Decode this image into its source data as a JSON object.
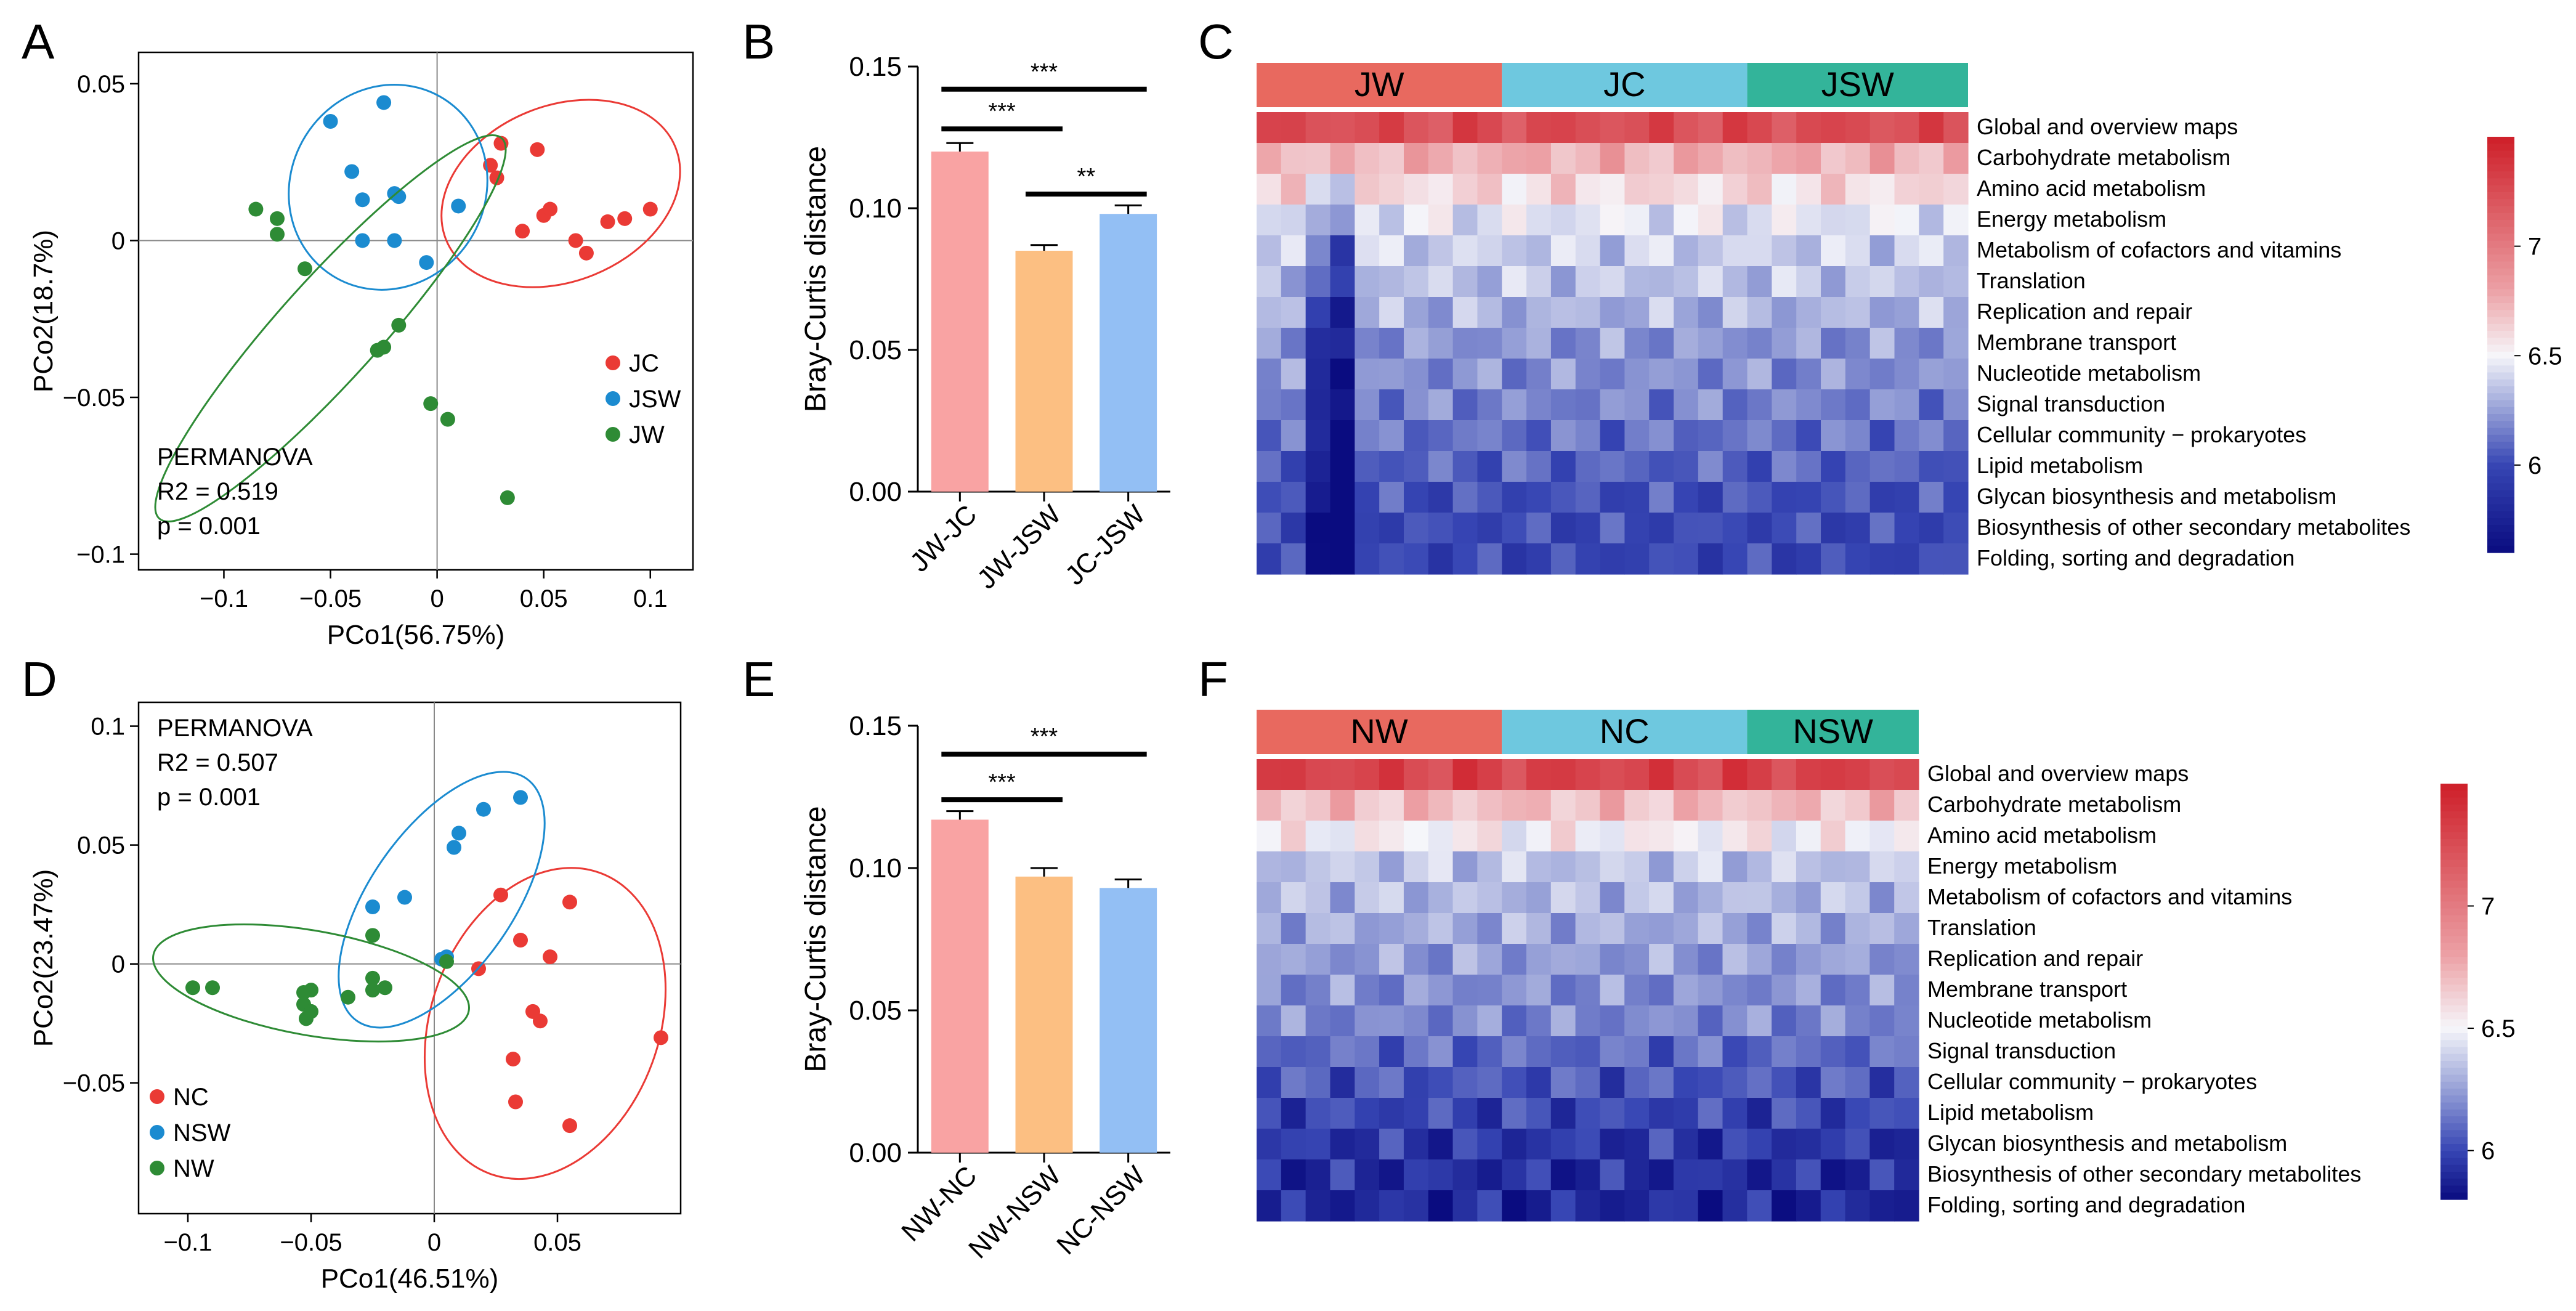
{
  "colors": {
    "JC": "#ea3a35",
    "JSW": "#1b8bd0",
    "JW": "#2e8b35",
    "NC": "#ea3a35",
    "NSW": "#1b8bd0",
    "NW": "#2e8b35",
    "bar_pink": "#f9a3a3",
    "bar_orange": "#fcbf82",
    "bar_blue": "#93bff4",
    "group_W": "#e8695f",
    "group_C": "#6ec8df",
    "group_SW": "#33b49a"
  },
  "chart_data": [
    {
      "panel": "A",
      "type": "scatter",
      "xlabel": "PCo1(56.75%)",
      "ylabel": "PCo2(18.7%)",
      "xlim": [
        -0.14,
        0.12
      ],
      "ylim": [
        -0.105,
        0.06
      ],
      "xticks": [
        -0.1,
        -0.05,
        0,
        0.05,
        0.1
      ],
      "xtick_labels": [
        "−0.1",
        "−0.05",
        "0",
        "0.05",
        "0.1"
      ],
      "yticks": [
        -0.1,
        -0.05,
        0,
        0.05
      ],
      "ytick_labels": [
        "−0.1",
        "−0.05",
        "0",
        "0.05"
      ],
      "annotation": [
        "PERMANOVA",
        "R2 = 0.519",
        "p = 0.001"
      ],
      "legend_position": "right",
      "series": [
        {
          "name": "JC",
          "color_key": "JC",
          "points": [
            [
              0.025,
              0.024
            ],
            [
              0.028,
              0.02
            ],
            [
              0.03,
              0.031
            ],
            [
              0.047,
              0.029
            ],
            [
              0.05,
              0.008
            ],
            [
              0.053,
              0.01
            ],
            [
              0.04,
              0.003
            ],
            [
              0.065,
              0.0
            ],
            [
              0.08,
              0.006
            ],
            [
              0.088,
              0.007
            ],
            [
              0.07,
              -0.004
            ],
            [
              0.1,
              0.01
            ]
          ],
          "ellipse": {
            "cx": 0.058,
            "cy": 0.015,
            "rx": 0.058,
            "ry": 0.028,
            "angle_deg": -22
          }
        },
        {
          "name": "JSW",
          "color_key": "JSW",
          "points": [
            [
              -0.05,
              0.038
            ],
            [
              -0.025,
              0.044
            ],
            [
              -0.04,
              0.022
            ],
            [
              -0.035,
              0.013
            ],
            [
              -0.018,
              0.014
            ],
            [
              -0.02,
              0.015
            ],
            [
              -0.035,
              0.0
            ],
            [
              -0.02,
              0.0
            ],
            [
              0.01,
              0.011
            ],
            [
              -0.005,
              -0.007
            ]
          ],
          "ellipse": {
            "cx": -0.023,
            "cy": 0.017,
            "rx": 0.049,
            "ry": 0.031,
            "angle_deg": -58
          }
        },
        {
          "name": "JW",
          "color_key": "JW",
          "points": [
            [
              -0.085,
              0.01
            ],
            [
              -0.075,
              0.007
            ],
            [
              -0.075,
              0.002
            ],
            [
              -0.062,
              -0.009
            ],
            [
              -0.028,
              -0.035
            ],
            [
              -0.025,
              -0.034
            ],
            [
              -0.018,
              -0.027
            ],
            [
              -0.003,
              -0.052
            ],
            [
              0.005,
              -0.057
            ],
            [
              0.033,
              -0.082
            ]
          ],
          "ellipse": {
            "cx": -0.05,
            "cy": -0.028,
            "rx": 0.12,
            "ry": 0.016,
            "angle_deg": -48
          }
        }
      ],
      "legend": [
        "JC",
        "JSW",
        "JW"
      ]
    },
    {
      "panel": "B",
      "type": "bar",
      "categories": [
        "JW-JC",
        "JW-JSW",
        "JC-JSW"
      ],
      "values": [
        0.12,
        0.085,
        0.098
      ],
      "errors": [
        0.003,
        0.002,
        0.003
      ],
      "ylabel": "Bray-Curtis distance",
      "ylim": [
        0,
        0.15
      ],
      "yticks": [
        0,
        0.05,
        0.1,
        0.15
      ],
      "ytick_labels": [
        "0.00",
        "0.05",
        "0.10",
        "0.15"
      ],
      "significance": [
        {
          "from": 0,
          "to": 2,
          "label": "***",
          "y": 0.142
        },
        {
          "from": 0,
          "to": 1,
          "label": "***",
          "y": 0.128
        },
        {
          "from": 1,
          "to": 2,
          "label": "**",
          "y": 0.105
        }
      ]
    },
    {
      "panel": "C",
      "type": "heatmap",
      "groups": [
        {
          "label": "JW",
          "columns": 10,
          "color_key": "group_W"
        },
        {
          "label": "JC",
          "columns": 10,
          "color_key": "group_C"
        },
        {
          "label": "JSW",
          "columns": 9,
          "color_key": "group_SW"
        }
      ],
      "rows": [
        "Global and overview maps",
        "Carbohydrate metabolism",
        "Amino acid metabolism",
        "Energy metabolism",
        "Metabolism of cofactors and vitamins",
        "Translation",
        "Replication and repair",
        "Membrane transport",
        "Nucleotide metabolism",
        "Signal transduction",
        "Cellular community − prokaryotes",
        "Lipid metabolism",
        "Glycan biosynthesis and metabolism",
        "Biosynthesis of other secondary metabolites",
        "Folding, sorting and degradation"
      ],
      "row_means": [
        7.25,
        6.75,
        6.6,
        6.45,
        6.38,
        6.35,
        6.3,
        6.22,
        6.2,
        6.17,
        6.12,
        6.08,
        6.02,
        6.0,
        5.98
      ],
      "anomalous_columns": {
        "2": -0.35,
        "3": -0.55
      },
      "colorbar": {
        "min": 5.6,
        "max": 7.5,
        "ticks": [
          6,
          6.5,
          7
        ],
        "tick_labels": [
          "6",
          "6.5",
          "7"
        ]
      }
    },
    {
      "panel": "D",
      "type": "scatter",
      "xlabel": "PCo1(46.51%)",
      "ylabel": "PCo2(23.47%)",
      "xlim": [
        -0.12,
        0.1
      ],
      "ylim": [
        -0.105,
        0.11
      ],
      "xticks": [
        -0.1,
        -0.05,
        0,
        0.05
      ],
      "xtick_labels": [
        "−0.1",
        "−0.05",
        "0",
        "0.05"
      ],
      "yticks": [
        -0.05,
        0,
        0.05,
        0.1
      ],
      "ytick_labels": [
        "−0.05",
        "0",
        "0.05",
        "0.1"
      ],
      "annotation": [
        "PERMANOVA",
        "R2 = 0.507",
        "p = 0.001"
      ],
      "legend_position": "bottom-left",
      "series": [
        {
          "name": "NC",
          "color_key": "NC",
          "points": [
            [
              0.027,
              0.029
            ],
            [
              0.055,
              0.026
            ],
            [
              0.035,
              0.01
            ],
            [
              0.047,
              0.003
            ],
            [
              0.018,
              -0.002
            ],
            [
              0.04,
              -0.02
            ],
            [
              0.043,
              -0.024
            ],
            [
              0.032,
              -0.04
            ],
            [
              0.092,
              -0.031
            ],
            [
              0.033,
              -0.058
            ],
            [
              0.055,
              -0.068
            ]
          ],
          "ellipse": {
            "cx": 0.045,
            "cy": -0.025,
            "rx": 0.065,
            "ry": 0.048,
            "angle_deg": -70
          }
        },
        {
          "name": "NSW",
          "color_key": "NSW",
          "points": [
            [
              0.035,
              0.07
            ],
            [
              0.02,
              0.065
            ],
            [
              0.01,
              0.055
            ],
            [
              0.008,
              0.049
            ],
            [
              -0.012,
              0.028
            ],
            [
              -0.025,
              0.024
            ],
            [
              0.005,
              0.003
            ],
            [
              0.003,
              0.002
            ]
          ],
          "ellipse": {
            "cx": 0.003,
            "cy": 0.027,
            "rx": 0.06,
            "ry": 0.03,
            "angle_deg": -55
          }
        },
        {
          "name": "NW",
          "color_key": "NW",
          "points": [
            [
              -0.098,
              -0.01
            ],
            [
              -0.09,
              -0.01
            ],
            [
              -0.05,
              -0.011
            ],
            [
              -0.053,
              -0.012
            ],
            [
              -0.053,
              -0.017
            ],
            [
              -0.05,
              -0.02
            ],
            [
              -0.052,
              -0.023
            ],
            [
              -0.035,
              -0.014
            ],
            [
              -0.025,
              -0.006
            ],
            [
              -0.02,
              -0.01
            ],
            [
              -0.025,
              -0.011
            ],
            [
              -0.025,
              0.012
            ],
            [
              0.005,
              0.001
            ]
          ],
          "ellipse": {
            "cx": -0.05,
            "cy": -0.008,
            "rx": 0.065,
            "ry": 0.022,
            "angle_deg": 10
          }
        }
      ],
      "legend": [
        "NC",
        "NSW",
        "NW"
      ]
    },
    {
      "panel": "E",
      "type": "bar",
      "categories": [
        "NW-NC",
        "NW-NSW",
        "NC-NSW"
      ],
      "values": [
        0.117,
        0.097,
        0.093
      ],
      "errors": [
        0.003,
        0.003,
        0.003
      ],
      "ylabel": "Bray-Curtis distance",
      "ylim": [
        0,
        0.15
      ],
      "yticks": [
        0,
        0.05,
        0.1,
        0.15
      ],
      "ytick_labels": [
        "0.00",
        "0.05",
        "0.10",
        "0.15"
      ],
      "significance": [
        {
          "from": 0,
          "to": 2,
          "label": "***",
          "y": 0.14
        },
        {
          "from": 0,
          "to": 1,
          "label": "***",
          "y": 0.124
        }
      ]
    },
    {
      "panel": "F",
      "type": "heatmap",
      "groups": [
        {
          "label": "NW",
          "columns": 10,
          "color_key": "group_W"
        },
        {
          "label": "NC",
          "columns": 10,
          "color_key": "group_C"
        },
        {
          "label": "NSW",
          "columns": 7,
          "color_key": "group_SW"
        }
      ],
      "rows": [
        "Global and overview maps",
        "Carbohydrate metabolism",
        "Amino acid metabolism",
        "Energy metabolism",
        "Metabolism of cofactors and vitamins",
        "Translation",
        "Replication and repair",
        "Membrane transport",
        "Nucleotide metabolism",
        "Signal transduction",
        "Cellular community − prokaryotes",
        "Lipid metabolism",
        "Glycan biosynthesis and metabolism",
        "Biosynthesis of other secondary metabolites",
        "Folding, sorting and degradation"
      ],
      "row_means": [
        7.3,
        6.7,
        6.52,
        6.35,
        6.32,
        6.28,
        6.24,
        6.2,
        6.18,
        6.1,
        6.05,
        6.0,
        5.95,
        5.92,
        5.9
      ],
      "anomalous_columns": {},
      "colorbar": {
        "min": 5.8,
        "max": 7.5,
        "ticks": [
          6,
          6.5,
          7
        ],
        "tick_labels": [
          "6",
          "6.5",
          "7"
        ]
      }
    }
  ]
}
